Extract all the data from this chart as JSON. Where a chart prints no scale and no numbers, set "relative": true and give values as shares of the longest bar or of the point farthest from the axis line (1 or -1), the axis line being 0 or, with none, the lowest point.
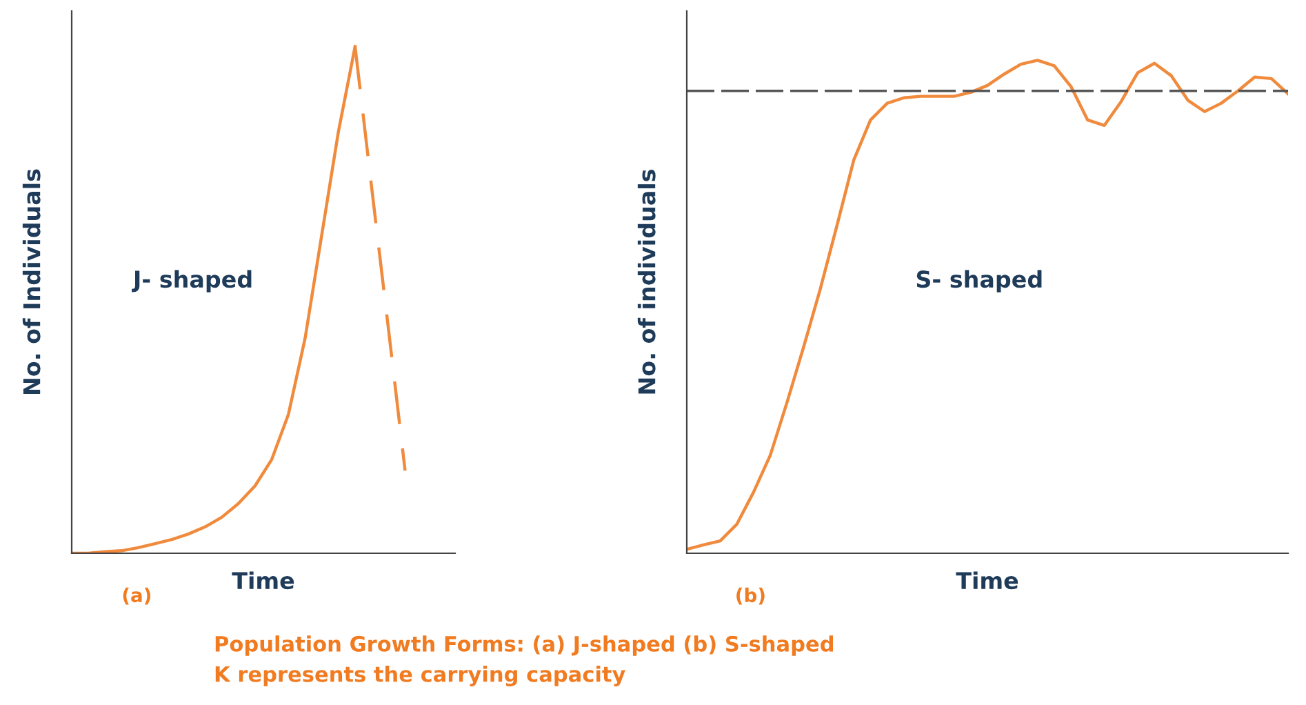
{
  "chart_data": [
    {
      "type": "line",
      "relative": true,
      "xlabel": "Time",
      "ylabel": "No. of Individuals",
      "annotations": [
        "J- shaped",
        "(a)",
        "Population Growth Forms: (a) J-shaped (b) S-shaped",
        "K represents the carrying capacity"
      ],
      "categories": [
        null,
        null,
        null,
        null,
        null,
        null,
        null,
        null,
        null,
        null,
        null,
        null,
        null,
        null,
        null,
        null,
        null,
        null,
        null,
        null,
        null,
        null,
        null,
        null
      ],
      "series": [
        {
          "color": "#f08a3c",
          "line_style": "solid",
          "values": [
            0,
            0,
            0.003,
            0.005,
            0.011,
            0.019,
            0.027,
            0.038,
            0.052,
            0.071,
            0.098,
            0.133,
            0.185,
            0.274,
            0.424,
            0.628,
            0.832,
            1,
            null,
            null,
            null,
            null,
            null,
            null
          ]
        },
        {
          "color": "#f08a3c",
          "line_style": "dashed",
          "values": [
            null,
            null,
            null,
            null,
            null,
            null,
            null,
            null,
            null,
            null,
            null,
            null,
            null,
            null,
            null,
            null,
            null,
            1,
            0.72,
            0.443,
            0.163,
            null,
            null,
            null
          ]
        }
      ],
      "grid": false,
      "legend": false
    },
    {
      "type": "line",
      "relative": true,
      "xlabel": "Time",
      "ylabel": "No. of individuals",
      "annotations": [
        "S- shaped",
        "(b)"
      ],
      "categories": [
        null,
        null,
        null,
        null,
        null,
        null,
        null,
        null,
        null,
        null,
        null,
        null,
        null,
        null,
        null,
        null,
        null,
        null,
        null,
        null,
        null,
        null,
        null,
        null,
        null,
        null,
        null,
        null,
        null,
        null,
        null,
        null,
        null,
        null,
        null,
        null,
        null
      ],
      "series": [
        {
          "color": "#f08a3c",
          "line_style": "solid",
          "values": [
            0.008,
            0.017,
            0.025,
            0.059,
            0.124,
            0.199,
            0.306,
            0.419,
            0.537,
            0.666,
            0.798,
            0.879,
            0.913,
            0.924,
            0.927,
            0.927,
            0.927,
            0.935,
            0.949,
            0.972,
            0.992,
            1,
            0.989,
            0.947,
            0.879,
            0.868,
            0.916,
            0.975,
            0.994,
            0.969,
            0.919,
            0.896,
            0.913,
            0.938,
            0.966,
            0.963,
            0.932
          ]
        }
      ],
      "ref_lines": [
        {
          "axis": "y",
          "value": 0.938,
          "color": "#555555",
          "line_style": "dashed"
        }
      ],
      "grid": false,
      "legend": false
    }
  ]
}
